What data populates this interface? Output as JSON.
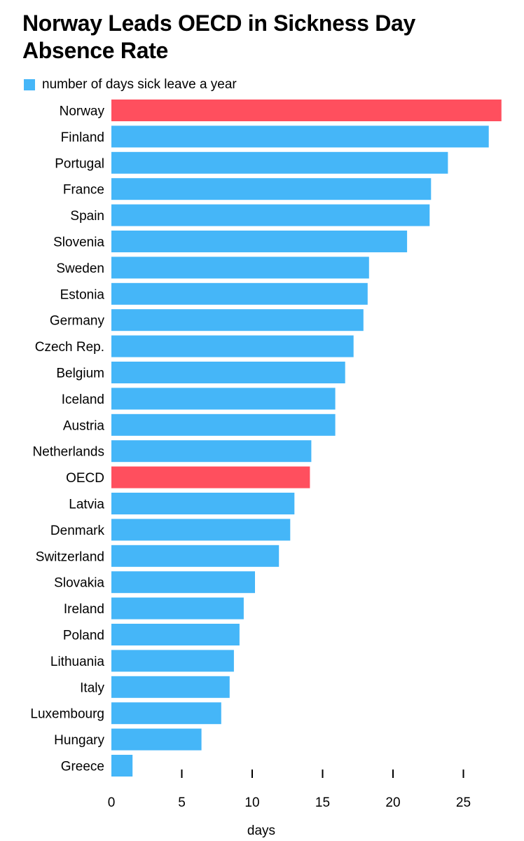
{
  "chart_data": {
    "type": "bar",
    "orientation": "horizontal",
    "title": "Norway Leads OECD in Sickness Day Absence Rate",
    "series": [
      {
        "name": "number of days sick leave a year",
        "color": "#45b6f8"
      }
    ],
    "highlight_color": "#ff4f5e",
    "highlighted": [
      "Norway",
      "OECD"
    ],
    "categories": [
      "Norway",
      "Finland",
      "Portugal",
      "France",
      "Spain",
      "Slovenia",
      "Sweden",
      "Estonia",
      "Germany",
      "Czech Rep.",
      "Belgium",
      "Iceland",
      "Austria",
      "Netherlands",
      "OECD",
      "Latvia",
      "Denmark",
      "Switzerland",
      "Slovakia",
      "Ireland",
      "Poland",
      "Lithuania",
      "Italy",
      "Luxembourg",
      "Hungary",
      "Greece"
    ],
    "values": [
      27.7,
      26.8,
      23.9,
      22.7,
      22.6,
      21.0,
      18.3,
      18.2,
      17.9,
      17.2,
      16.6,
      15.9,
      15.9,
      14.2,
      14.1,
      13.0,
      12.7,
      11.9,
      10.2,
      9.4,
      9.1,
      8.7,
      8.4,
      7.8,
      6.4,
      1.5
    ],
    "xlabel": "days",
    "xticks": [
      0,
      5,
      10,
      15,
      20,
      25
    ],
    "xlim": [
      0,
      28
    ],
    "grid": false
  }
}
